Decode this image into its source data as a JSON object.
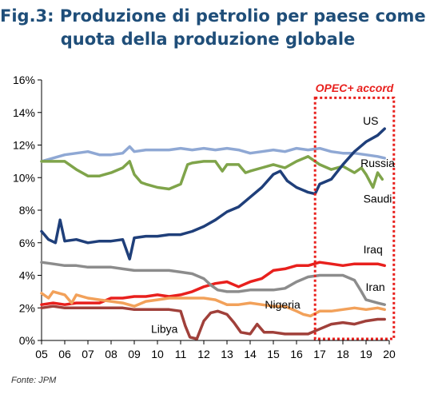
{
  "title": {
    "line1": "Fig.3: Produzione di petrolio per paese come",
    "line2": "quota della produzione globale"
  },
  "source": "Fonte: JPM",
  "chart_data": {
    "type": "line",
    "xlim": [
      2005,
      2020
    ],
    "ylim": [
      0,
      16
    ],
    "x_ticks": [
      {
        "value": 2005,
        "label": "05"
      },
      {
        "value": 2006,
        "label": "06"
      },
      {
        "value": 2007,
        "label": "07"
      },
      {
        "value": 2008,
        "label": "08"
      },
      {
        "value": 2009,
        "label": "09"
      },
      {
        "value": 2010,
        "label": "10"
      },
      {
        "value": 2011,
        "label": "11"
      },
      {
        "value": 2012,
        "label": "12"
      },
      {
        "value": 2013,
        "label": "13"
      },
      {
        "value": 2014,
        "label": "14"
      },
      {
        "value": 2015,
        "label": "15"
      },
      {
        "value": 2016,
        "label": "16"
      },
      {
        "value": 2017,
        "label": "17"
      },
      {
        "value": 2018,
        "label": "18"
      },
      {
        "value": 2019,
        "label": "19"
      },
      {
        "value": 2020,
        "label": "20"
      }
    ],
    "y_ticks": [
      {
        "value": 0,
        "label": "0%"
      },
      {
        "value": 2,
        "label": "2%"
      },
      {
        "value": 4,
        "label": "4%"
      },
      {
        "value": 6,
        "label": "6%"
      },
      {
        "value": 8,
        "label": "8%"
      },
      {
        "value": 10,
        "label": "10%"
      },
      {
        "value": 12,
        "label": "12%"
      },
      {
        "value": 14,
        "label": "14%"
      },
      {
        "value": 16,
        "label": "16%"
      }
    ],
    "grid": false,
    "series": [
      {
        "name": "Russia",
        "color": "#8fa8d4",
        "points": [
          [
            2005,
            11.0
          ],
          [
            2005.5,
            11.2
          ],
          [
            2006,
            11.4
          ],
          [
            2006.5,
            11.5
          ],
          [
            2007,
            11.6
          ],
          [
            2007.5,
            11.4
          ],
          [
            2008,
            11.4
          ],
          [
            2008.5,
            11.5
          ],
          [
            2008.8,
            11.9
          ],
          [
            2009,
            11.6
          ],
          [
            2009.5,
            11.7
          ],
          [
            2010,
            11.7
          ],
          [
            2010.5,
            11.7
          ],
          [
            2011,
            11.8
          ],
          [
            2011.5,
            11.7
          ],
          [
            2012,
            11.8
          ],
          [
            2012.5,
            11.7
          ],
          [
            2013,
            11.8
          ],
          [
            2013.5,
            11.7
          ],
          [
            2014,
            11.5
          ],
          [
            2014.5,
            11.6
          ],
          [
            2015,
            11.7
          ],
          [
            2015.5,
            11.6
          ],
          [
            2016,
            11.8
          ],
          [
            2016.5,
            11.7
          ],
          [
            2017,
            11.8
          ],
          [
            2017.5,
            11.6
          ],
          [
            2018,
            11.5
          ],
          [
            2018.5,
            11.5
          ],
          [
            2019,
            11.4
          ],
          [
            2019.5,
            11.3
          ],
          [
            2019.8,
            11.2
          ]
        ]
      },
      {
        "name": "Saudi",
        "color": "#7fa44a",
        "points": [
          [
            2005,
            11.0
          ],
          [
            2005.5,
            11.0
          ],
          [
            2006,
            11.0
          ],
          [
            2006.5,
            10.5
          ],
          [
            2007,
            10.1
          ],
          [
            2007.5,
            10.1
          ],
          [
            2008,
            10.3
          ],
          [
            2008.5,
            10.6
          ],
          [
            2008.8,
            11.0
          ],
          [
            2009,
            10.2
          ],
          [
            2009.3,
            9.7
          ],
          [
            2009.5,
            9.6
          ],
          [
            2010,
            9.4
          ],
          [
            2010.5,
            9.3
          ],
          [
            2011,
            9.6
          ],
          [
            2011.3,
            10.8
          ],
          [
            2011.5,
            10.9
          ],
          [
            2012,
            11.0
          ],
          [
            2012.5,
            11.0
          ],
          [
            2012.8,
            10.4
          ],
          [
            2013,
            10.8
          ],
          [
            2013.5,
            10.8
          ],
          [
            2013.8,
            10.3
          ],
          [
            2014,
            10.4
          ],
          [
            2014.5,
            10.6
          ],
          [
            2015,
            10.8
          ],
          [
            2015.5,
            10.6
          ],
          [
            2016,
            11.0
          ],
          [
            2016.5,
            11.3
          ],
          [
            2017,
            10.8
          ],
          [
            2017.5,
            10.5
          ],
          [
            2018,
            10.7
          ],
          [
            2018.5,
            10.3
          ],
          [
            2018.8,
            10.6
          ],
          [
            2019,
            10.2
          ],
          [
            2019.3,
            9.4
          ],
          [
            2019.5,
            10.3
          ],
          [
            2019.7,
            9.9
          ]
        ]
      },
      {
        "name": "US",
        "color": "#1f3f7a",
        "points": [
          [
            2005,
            6.7
          ],
          [
            2005.3,
            6.2
          ],
          [
            2005.6,
            6.0
          ],
          [
            2005.8,
            7.4
          ],
          [
            2006,
            6.1
          ],
          [
            2006.5,
            6.2
          ],
          [
            2007,
            6.0
          ],
          [
            2007.5,
            6.1
          ],
          [
            2008,
            6.1
          ],
          [
            2008.5,
            6.2
          ],
          [
            2008.8,
            5.0
          ],
          [
            2009,
            6.3
          ],
          [
            2009.5,
            6.4
          ],
          [
            2010,
            6.4
          ],
          [
            2010.5,
            6.5
          ],
          [
            2011,
            6.5
          ],
          [
            2011.5,
            6.7
          ],
          [
            2012,
            7.0
          ],
          [
            2012.5,
            7.4
          ],
          [
            2013,
            7.9
          ],
          [
            2013.5,
            8.2
          ],
          [
            2014,
            8.8
          ],
          [
            2014.5,
            9.4
          ],
          [
            2015,
            10.2
          ],
          [
            2015.3,
            10.4
          ],
          [
            2015.6,
            9.8
          ],
          [
            2016,
            9.4
          ],
          [
            2016.5,
            9.1
          ],
          [
            2016.8,
            9.0
          ],
          [
            2017,
            9.6
          ],
          [
            2017.5,
            9.9
          ],
          [
            2018,
            10.8
          ],
          [
            2018.5,
            11.6
          ],
          [
            2019,
            12.2
          ],
          [
            2019.5,
            12.6
          ],
          [
            2019.8,
            13.0
          ]
        ]
      },
      {
        "name": "Iraq",
        "color": "#e8201d",
        "points": [
          [
            2005,
            2.2
          ],
          [
            2005.5,
            2.3
          ],
          [
            2006,
            2.2
          ],
          [
            2006.5,
            2.3
          ],
          [
            2007,
            2.3
          ],
          [
            2007.5,
            2.3
          ],
          [
            2008,
            2.6
          ],
          [
            2008.5,
            2.6
          ],
          [
            2009,
            2.7
          ],
          [
            2009.5,
            2.7
          ],
          [
            2010,
            2.8
          ],
          [
            2010.5,
            2.7
          ],
          [
            2011,
            2.8
          ],
          [
            2011.5,
            3.0
          ],
          [
            2012,
            3.3
          ],
          [
            2012.5,
            3.5
          ],
          [
            2013,
            3.6
          ],
          [
            2013.5,
            3.3
          ],
          [
            2014,
            3.6
          ],
          [
            2014.5,
            3.8
          ],
          [
            2015,
            4.3
          ],
          [
            2015.5,
            4.4
          ],
          [
            2016,
            4.6
          ],
          [
            2016.5,
            4.6
          ],
          [
            2017,
            4.8
          ],
          [
            2017.5,
            4.7
          ],
          [
            2018,
            4.6
          ],
          [
            2018.5,
            4.7
          ],
          [
            2019,
            4.7
          ],
          [
            2019.5,
            4.7
          ],
          [
            2019.8,
            4.6
          ]
        ]
      },
      {
        "name": "Iran",
        "color": "#8c8c8c",
        "points": [
          [
            2005,
            4.8
          ],
          [
            2005.5,
            4.7
          ],
          [
            2006,
            4.6
          ],
          [
            2006.5,
            4.6
          ],
          [
            2007,
            4.5
          ],
          [
            2007.5,
            4.5
          ],
          [
            2008,
            4.5
          ],
          [
            2008.5,
            4.4
          ],
          [
            2009,
            4.3
          ],
          [
            2009.5,
            4.3
          ],
          [
            2010,
            4.3
          ],
          [
            2010.5,
            4.3
          ],
          [
            2011,
            4.2
          ],
          [
            2011.5,
            4.1
          ],
          [
            2012,
            3.8
          ],
          [
            2012.3,
            3.4
          ],
          [
            2012.6,
            3.1
          ],
          [
            2013,
            3.0
          ],
          [
            2013.5,
            3.0
          ],
          [
            2014,
            3.1
          ],
          [
            2014.5,
            3.1
          ],
          [
            2015,
            3.1
          ],
          [
            2015.5,
            3.2
          ],
          [
            2016,
            3.6
          ],
          [
            2016.5,
            3.9
          ],
          [
            2017,
            4.0
          ],
          [
            2017.5,
            4.0
          ],
          [
            2018,
            4.0
          ],
          [
            2018.5,
            3.7
          ],
          [
            2018.8,
            3.0
          ],
          [
            2019,
            2.5
          ],
          [
            2019.5,
            2.3
          ],
          [
            2019.8,
            2.2
          ]
        ]
      },
      {
        "name": "Nigeria",
        "color": "#f2a15a",
        "points": [
          [
            2005,
            2.9
          ],
          [
            2005.3,
            2.6
          ],
          [
            2005.5,
            3.0
          ],
          [
            2006,
            2.8
          ],
          [
            2006.3,
            2.3
          ],
          [
            2006.5,
            2.8
          ],
          [
            2007,
            2.6
          ],
          [
            2007.5,
            2.5
          ],
          [
            2008,
            2.4
          ],
          [
            2008.5,
            2.3
          ],
          [
            2009,
            2.1
          ],
          [
            2009.5,
            2.4
          ],
          [
            2010,
            2.5
          ],
          [
            2010.5,
            2.6
          ],
          [
            2011,
            2.6
          ],
          [
            2011.5,
            2.6
          ],
          [
            2012,
            2.6
          ],
          [
            2012.5,
            2.5
          ],
          [
            2013,
            2.2
          ],
          [
            2013.5,
            2.2
          ],
          [
            2014,
            2.3
          ],
          [
            2014.5,
            2.2
          ],
          [
            2015,
            2.1
          ],
          [
            2015.5,
            2.1
          ],
          [
            2016,
            1.8
          ],
          [
            2016.3,
            1.6
          ],
          [
            2016.6,
            1.5
          ],
          [
            2017,
            1.8
          ],
          [
            2017.5,
            1.8
          ],
          [
            2018,
            1.9
          ],
          [
            2018.5,
            2.0
          ],
          [
            2019,
            1.9
          ],
          [
            2019.5,
            2.0
          ],
          [
            2019.8,
            1.9
          ]
        ]
      },
      {
        "name": "Libya",
        "color": "#a0403a",
        "points": [
          [
            2005,
            2.0
          ],
          [
            2005.5,
            2.1
          ],
          [
            2006,
            2.0
          ],
          [
            2006.5,
            2.0
          ],
          [
            2007,
            2.0
          ],
          [
            2007.5,
            2.0
          ],
          [
            2008,
            2.0
          ],
          [
            2008.5,
            2.0
          ],
          [
            2009,
            1.9
          ],
          [
            2009.5,
            1.9
          ],
          [
            2010,
            1.9
          ],
          [
            2010.5,
            1.9
          ],
          [
            2011,
            1.8
          ],
          [
            2011.2,
            0.9
          ],
          [
            2011.4,
            0.2
          ],
          [
            2011.7,
            0.1
          ],
          [
            2012,
            1.2
          ],
          [
            2012.3,
            1.7
          ],
          [
            2012.6,
            1.8
          ],
          [
            2013,
            1.6
          ],
          [
            2013.3,
            1.1
          ],
          [
            2013.6,
            0.5
          ],
          [
            2014,
            0.4
          ],
          [
            2014.3,
            1.0
          ],
          [
            2014.6,
            0.5
          ],
          [
            2015,
            0.5
          ],
          [
            2015.5,
            0.4
          ],
          [
            2016,
            0.4
          ],
          [
            2016.5,
            0.4
          ],
          [
            2017,
            0.7
          ],
          [
            2017.5,
            1.0
          ],
          [
            2018,
            1.1
          ],
          [
            2018.5,
            1.0
          ],
          [
            2019,
            1.2
          ],
          [
            2019.5,
            1.3
          ],
          [
            2019.8,
            1.3
          ]
        ]
      }
    ],
    "labels": [
      {
        "text": "US",
        "x": 2019.2,
        "y": 13.5,
        "anchor": "middle"
      },
      {
        "text": "Russia",
        "x": 2019.5,
        "y": 10.9,
        "anchor": "middle"
      },
      {
        "text": "Saudi",
        "x": 2019.5,
        "y": 8.7,
        "anchor": "middle"
      },
      {
        "text": "Iraq",
        "x": 2019.3,
        "y": 5.6,
        "anchor": "middle"
      },
      {
        "text": "Iran",
        "x": 2019.4,
        "y": 3.3,
        "anchor": "middle"
      },
      {
        "text": "Nigeria",
        "x": 2015.4,
        "y": 2.2,
        "anchor": "middle"
      },
      {
        "text": "Libya",
        "x": 2010.3,
        "y": 0.7,
        "anchor": "middle"
      }
    ],
    "annotation": {
      "text": "OPEC+ accord",
      "x_start": 2016.8,
      "x_end": 2020.2,
      "y_top": 14.9,
      "y_bottom": 0.1,
      "label_y": 15.5,
      "color": "#e8201d"
    }
  }
}
